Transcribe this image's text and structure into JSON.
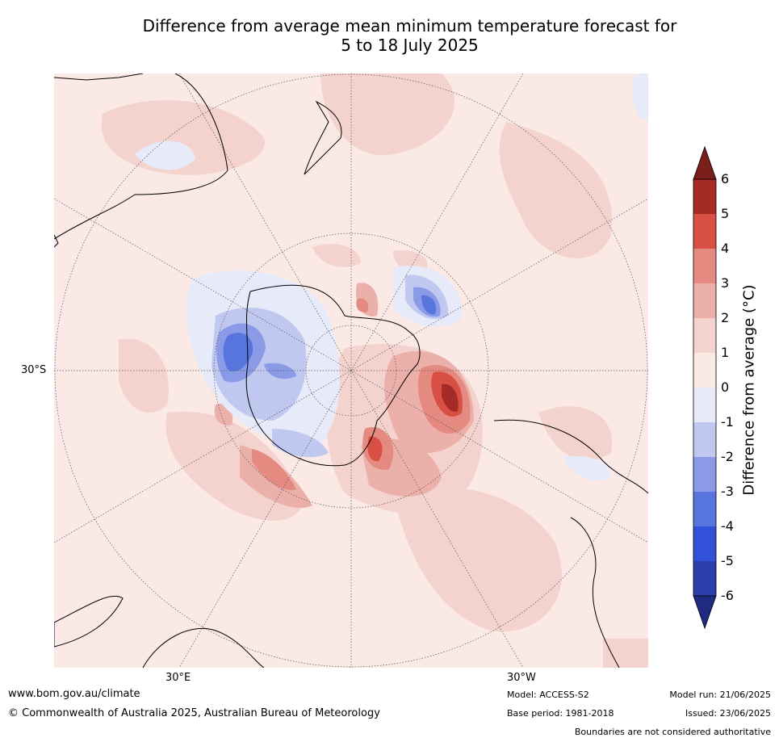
{
  "title": {
    "line1": "Difference from average mean minimum temperature forecast for",
    "line2": "5 to 18 July 2025"
  },
  "map": {
    "projection": "south-polar stereographic",
    "graticule_labels": {
      "lat_30s": "30°S",
      "lon_30e": "30°E",
      "lon_30w": "30°W"
    },
    "palette": {
      "neutral_warm": "#fbe9e6",
      "warm_1": "#f4d3cf",
      "warm_2": "#ebb0aa",
      "warm_3": "#e48a80",
      "warm_4": "#d84f44",
      "warm_5": "#a52b26",
      "cool_1": "#e6eaf9",
      "cool_2": "#c0c8f0",
      "cool_3": "#8a9ae6",
      "cool_4": "#5874dd",
      "cool_5": "#3151d8"
    }
  },
  "colorbar": {
    "title": "Difference from average (°C)",
    "ticks": [
      "6",
      "5",
      "4",
      "3",
      "2",
      "1",
      "0",
      "-1",
      "-2",
      "-3",
      "-4",
      "-5",
      "-6"
    ],
    "colors": [
      "#a52b26",
      "#d84f44",
      "#e48a80",
      "#ebb0aa",
      "#f4d3cf",
      "#fbe9e6",
      "#e6eaf9",
      "#c0c8f0",
      "#8a9ae6",
      "#5874dd",
      "#3151d8",
      "#2b3eac"
    ],
    "top_extend_color": "#7a1f1a",
    "bottom_extend_color": "#1f2a80"
  },
  "footer": {
    "url": "www.bom.gov.au/climate",
    "copyright": "© Commonwealth of Australia 2025, Australian Bureau of Meteorology",
    "model": "Model: ACCESS-S2",
    "base_period": "Base period: 1981-2018",
    "model_run": "Model run: 21/06/2025",
    "issued": "Issued: 23/06/2025",
    "disclaimer": "Boundaries are not considered authoritative"
  }
}
